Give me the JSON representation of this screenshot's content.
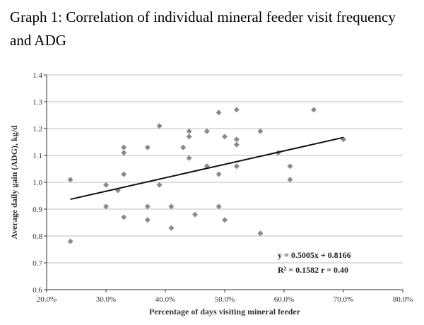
{
  "title": "Graph 1:  Correlation of individual mineral feeder visit frequency and ADG",
  "chart_data": {
    "type": "scatter",
    "title": "Graph 1:  Correlation of individual mineral feeder visit frequency and ADG",
    "xlabel": "Percentage of days visiting mineral feeder",
    "ylabel": "Average daily gain (ADG), kg/d",
    "xlim": [
      0.2,
      0.8
    ],
    "ylim": [
      0.6,
      1.4
    ],
    "x_ticks": [
      "20.0%",
      "30.0%",
      "40.0%",
      "50.0%",
      "60.0%",
      "70.0%",
      "80.0%"
    ],
    "y_ticks": [
      "0.6",
      "0.7",
      "0.8",
      "0.9",
      "1.0",
      "1.1",
      "1.2",
      "1.3",
      "1.4"
    ],
    "grid": "horizontal",
    "marker_color": "#8a8a8a",
    "points": [
      [
        0.24,
        1.01
      ],
      [
        0.24,
        0.78
      ],
      [
        0.3,
        0.99
      ],
      [
        0.3,
        0.91
      ],
      [
        0.32,
        0.97
      ],
      [
        0.33,
        1.13
      ],
      [
        0.33,
        1.11
      ],
      [
        0.33,
        1.03
      ],
      [
        0.33,
        0.87
      ],
      [
        0.37,
        1.13
      ],
      [
        0.37,
        0.91
      ],
      [
        0.37,
        0.86
      ],
      [
        0.39,
        1.21
      ],
      [
        0.39,
        0.99
      ],
      [
        0.41,
        0.91
      ],
      [
        0.41,
        0.83
      ],
      [
        0.43,
        1.13
      ],
      [
        0.44,
        1.19
      ],
      [
        0.44,
        1.17
      ],
      [
        0.44,
        1.09
      ],
      [
        0.45,
        0.88
      ],
      [
        0.47,
        1.19
      ],
      [
        0.47,
        1.06
      ],
      [
        0.49,
        1.26
      ],
      [
        0.49,
        1.03
      ],
      [
        0.49,
        0.91
      ],
      [
        0.5,
        1.17
      ],
      [
        0.5,
        0.86
      ],
      [
        0.52,
        1.27
      ],
      [
        0.52,
        1.16
      ],
      [
        0.52,
        1.14
      ],
      [
        0.52,
        1.06
      ],
      [
        0.56,
        1.19
      ],
      [
        0.56,
        0.81
      ],
      [
        0.59,
        1.11
      ],
      [
        0.61,
        1.06
      ],
      [
        0.61,
        1.01
      ],
      [
        0.65,
        1.27
      ],
      [
        0.7,
        1.16
      ]
    ],
    "trendline": {
      "slope": 0.5005,
      "intercept": 0.8166,
      "x_range": [
        0.24,
        0.7
      ]
    },
    "annotations": [
      "y = 0.5005x + 0.8166",
      "R² = 0.1582   r = 0.40"
    ]
  }
}
